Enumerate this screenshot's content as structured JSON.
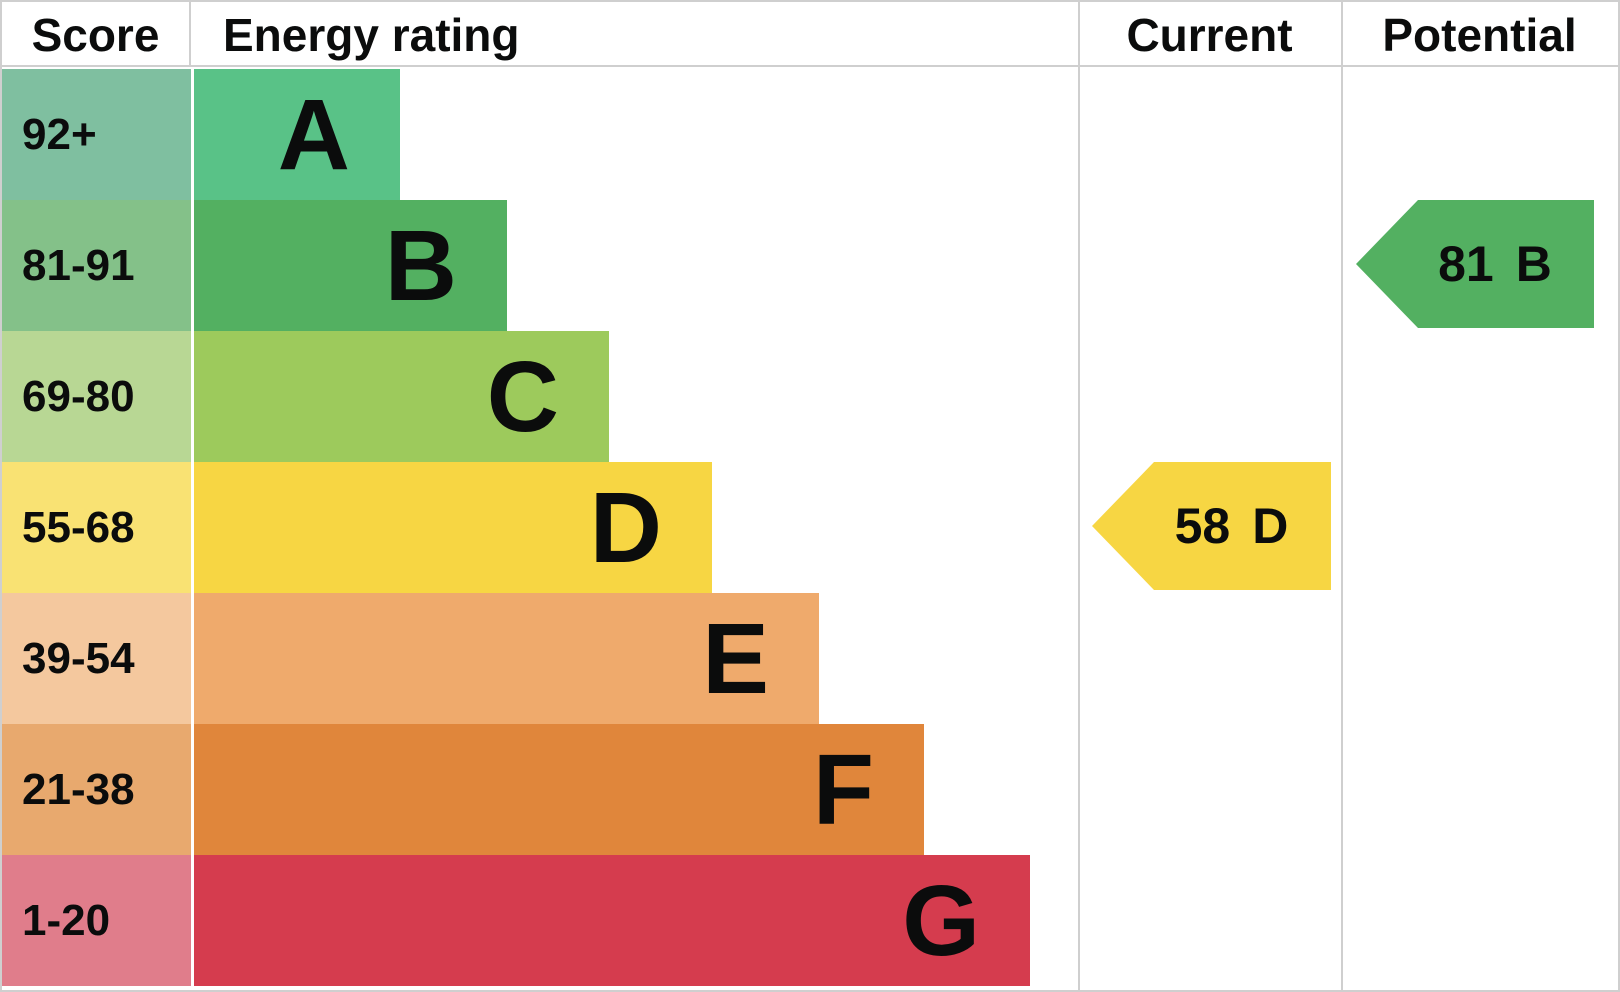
{
  "header": {
    "score": "Score",
    "energy_rating": "Energy rating",
    "current": "Current",
    "potential": "Potential"
  },
  "colors": {
    "border": "#cfcfcf",
    "text": "#0b0c0c",
    "background": "#ffffff"
  },
  "chart_data": {
    "type": "bar",
    "title": "Energy efficiency rating chart (EPC)",
    "legend_position": "none",
    "bands": [
      {
        "score": "92+",
        "letter": "A",
        "bar_color": "#59c287",
        "score_color": "#7fbfa0"
      },
      {
        "score": "81-91",
        "letter": "B",
        "bar_color": "#53b061",
        "score_color": "#84c189"
      },
      {
        "score": "69-80",
        "letter": "C",
        "bar_color": "#9dca5c",
        "score_color": "#b8d794"
      },
      {
        "score": "55-68",
        "letter": "D",
        "bar_color": "#f7d643",
        "score_color": "#f9e273"
      },
      {
        "score": "39-54",
        "letter": "E",
        "bar_color": "#efaa6c",
        "score_color": "#f4c89e"
      },
      {
        "score": "21-38",
        "letter": "F",
        "bar_color": "#e0863b",
        "score_color": "#e8a96e"
      },
      {
        "score": "1-20",
        "letter": "G",
        "bar_color": "#d53c4e",
        "score_color": "#e07d8b"
      }
    ],
    "current": {
      "value": "58",
      "band": "D",
      "color": "#f7d643"
    },
    "potential": {
      "value": "81",
      "band": "B",
      "color": "#53b061"
    }
  }
}
